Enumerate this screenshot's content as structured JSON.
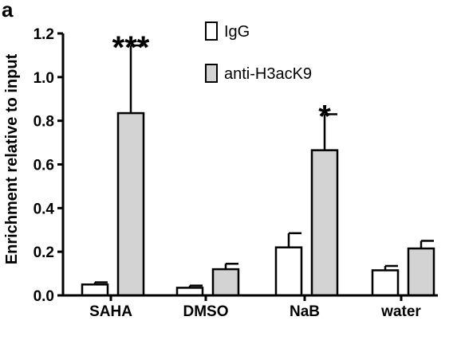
{
  "panel_label": "a",
  "chart_data": {
    "type": "bar",
    "title": "",
    "xlabel": "",
    "ylabel": "Enrichment relative to input",
    "ylim": [
      0,
      1.2
    ],
    "yticks": [
      "0.0",
      "0.2",
      "0.4",
      "0.6",
      "0.8",
      "1.0",
      "1.2"
    ],
    "categories": [
      "SAHA",
      "DMSO",
      "NaB",
      "water"
    ],
    "series": [
      {
        "name": "IgG",
        "color": "#ffffff",
        "values": [
          0.05,
          0.035,
          0.22,
          0.115
        ],
        "errors": [
          0.01,
          0.01,
          0.065,
          0.02
        ]
      },
      {
        "name": "anti-H3acK9",
        "color": "#d3d3d3",
        "values": [
          0.835,
          0.12,
          0.665,
          0.215
        ],
        "errors": [
          0.31,
          0.025,
          0.165,
          0.035
        ]
      }
    ],
    "annotations": [
      "***",
      "",
      "*",
      ""
    ],
    "legend_position": "top-right",
    "grid": false
  }
}
